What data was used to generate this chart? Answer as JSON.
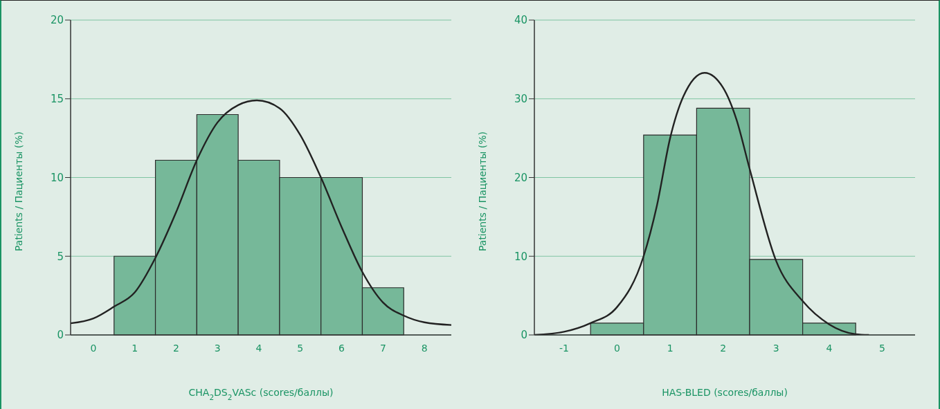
{
  "chart_data": [
    {
      "type": "histogram",
      "xlabel": "CHA$_{2}$DS$_{2}$VASc (scores/баллы)",
      "ylabel": "Patients / Пациенты (%)",
      "bins": [
        0.5,
        1.5,
        2.5,
        3.5,
        4.5,
        5.5,
        6.5,
        7.5
      ],
      "values": [
        5,
        11.1,
        14,
        11.1,
        10,
        10,
        3
      ],
      "color": "#76b899",
      "xlim": [
        -0.55,
        8.65
      ],
      "xticks": [
        0,
        1,
        2,
        3,
        4,
        5,
        6,
        7,
        8
      ],
      "ylim": [
        0,
        20
      ],
      "yticks": [
        0,
        5,
        10,
        15,
        20
      ],
      "grid": "y",
      "series": [
        {
          "type": "line",
          "color": "#222222",
          "x": [
            -0.55,
            0,
            0.5,
            1,
            1.5,
            2,
            2.5,
            3,
            3.5,
            3.95,
            4.5,
            5,
            5.5,
            6,
            6.5,
            7,
            7.5,
            8,
            8.65
          ],
          "values": [
            0.74,
            1.05,
            1.8,
            2.7,
            4.9,
            7.8,
            11.1,
            13.5,
            14.6,
            14.9,
            14.4,
            12.7,
            10,
            6.85,
            4,
            2.06,
            1.23,
            0.8,
            0.63
          ]
        }
      ]
    },
    {
      "type": "histogram",
      "xlabel": "HAS-BLED (scores/баллы)",
      "ylabel": "Patients / Пациенты (%)",
      "bins": [
        -0.5,
        0.5,
        1.5,
        2.5,
        3.5,
        4.5
      ],
      "values": [
        1.5,
        25.4,
        28.8,
        9.6,
        1.5
      ],
      "color": "#76b899",
      "xlim": [
        -1.56,
        5.62
      ],
      "xticks": [
        -1,
        0,
        1,
        2,
        3,
        4,
        5
      ],
      "ylim": [
        0,
        40
      ],
      "yticks": [
        0,
        10,
        20,
        30,
        40
      ],
      "grid": "y",
      "series": [
        {
          "type": "line",
          "color": "#222222",
          "x": [
            -1.56,
            -1,
            -0.5,
            0,
            0.5,
            0.75,
            1,
            1.25,
            1.65,
            2,
            2.25,
            2.5,
            3,
            3.5,
            4,
            4.5,
            4.75
          ],
          "values": [
            0,
            0.4,
            1.5,
            3.55,
            10,
            16.4,
            25,
            30.3,
            33.3,
            31.4,
            27.4,
            21.1,
            9.4,
            4.3,
            1.35,
            0.1,
            0
          ]
        }
      ]
    }
  ]
}
